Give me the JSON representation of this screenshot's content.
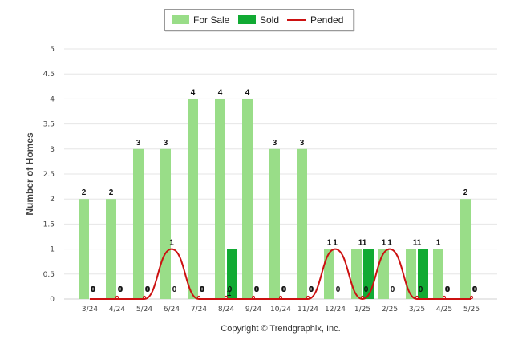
{
  "chart_data": {
    "type": "bar",
    "ylabel": "Number of Homes",
    "xlabel": "",
    "ylim": [
      0,
      5
    ],
    "yticks": [
      "0",
      "0.5",
      "1",
      "1.5",
      "2",
      "2.5",
      "3",
      "3.5",
      "4",
      "4.5",
      "5"
    ],
    "categories": [
      "3/24",
      "4/24",
      "5/24",
      "6/24",
      "7/24",
      "8/24",
      "9/24",
      "10/24",
      "11/24",
      "12/24",
      "1/25",
      "2/25",
      "3/25",
      "4/25",
      "5/25"
    ],
    "series": [
      {
        "name": "For Sale",
        "kind": "bar",
        "color": "#99dd88",
        "values": [
          2,
          2,
          3,
          3,
          4,
          4,
          4,
          3,
          3,
          1,
          1,
          1,
          1,
          1,
          2
        ]
      },
      {
        "name": "Sold",
        "kind": "bar",
        "color": "#11aa33",
        "values": [
          0,
          0,
          0,
          0,
          0,
          1,
          0,
          0,
          0,
          0,
          1,
          0,
          1,
          0,
          0
        ]
      },
      {
        "name": "Pended",
        "kind": "line",
        "color": "#cc1111",
        "values": [
          0,
          0,
          0,
          1,
          0,
          0,
          0,
          0,
          0,
          1,
          0,
          1,
          0,
          0,
          0
        ]
      }
    ],
    "grid": true,
    "legend_position": "top-center"
  },
  "footer": {
    "copyright": "Copyright © Trendgraphix, Inc."
  }
}
